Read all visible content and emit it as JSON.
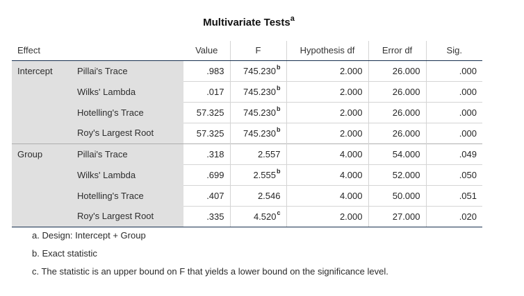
{
  "title": "Multivariate Tests",
  "title_footnote": "a",
  "columns": {
    "effect": "Effect",
    "value": "Value",
    "f": "F",
    "hypothesis_df": "Hypothesis df",
    "error_df": "Error df",
    "sig": "Sig."
  },
  "rows": [
    {
      "effect": "Intercept",
      "test": "Pillai's Trace",
      "value": ".983",
      "f": "745.230",
      "f_note": "b",
      "hyp_df": "2.000",
      "err_df": "26.000",
      "sig": ".000"
    },
    {
      "effect": "",
      "test": "Wilks' Lambda",
      "value": ".017",
      "f": "745.230",
      "f_note": "b",
      "hyp_df": "2.000",
      "err_df": "26.000",
      "sig": ".000"
    },
    {
      "effect": "",
      "test": "Hotelling's Trace",
      "value": "57.325",
      "f": "745.230",
      "f_note": "b",
      "hyp_df": "2.000",
      "err_df": "26.000",
      "sig": ".000"
    },
    {
      "effect": "",
      "test": "Roy's Largest Root",
      "value": "57.325",
      "f": "745.230",
      "f_note": "b",
      "hyp_df": "2.000",
      "err_df": "26.000",
      "sig": ".000"
    },
    {
      "effect": "Group",
      "test": "Pillai's Trace",
      "value": ".318",
      "f": "2.557",
      "f_note": "",
      "hyp_df": "4.000",
      "err_df": "54.000",
      "sig": ".049"
    },
    {
      "effect": "",
      "test": "Wilks' Lambda",
      "value": ".699",
      "f": "2.555",
      "f_note": "b",
      "hyp_df": "4.000",
      "err_df": "52.000",
      "sig": ".050"
    },
    {
      "effect": "",
      "test": "Hotelling's Trace",
      "value": ".407",
      "f": "2.546",
      "f_note": "",
      "hyp_df": "4.000",
      "err_df": "50.000",
      "sig": ".051"
    },
    {
      "effect": "",
      "test": "Roy's Largest Root",
      "value": ".335",
      "f": "4.520",
      "f_note": "c",
      "hyp_df": "2.000",
      "err_df": "27.000",
      "sig": ".020"
    }
  ],
  "footnotes": [
    "a. Design: Intercept + Group",
    "b. Exact statistic",
    "c. The statistic is an upper bound on F that yields a lower bound on the significance level."
  ]
}
